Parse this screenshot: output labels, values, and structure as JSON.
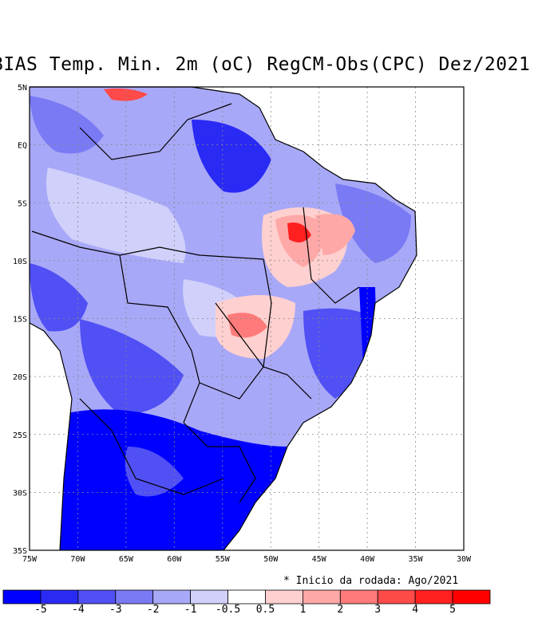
{
  "title": "BIAS Temp. Min. 2m (oC) RegCM-Obs(CPC) Dez/2021",
  "note": "* Inicio da rodada: Ago/2021",
  "axes": {
    "x_ticks": [
      "75W",
      "70W",
      "65W",
      "60W",
      "55W",
      "50W",
      "45W",
      "40W",
      "35W",
      "30W"
    ],
    "y_ticks": [
      "5N",
      "EQ",
      "5S",
      "10S",
      "15S",
      "20S",
      "25S",
      "30S",
      "35S"
    ],
    "lon_range": [
      -75,
      -30
    ],
    "lat_range": [
      -35,
      5
    ]
  },
  "colorbar": {
    "labels": [
      "-5",
      "-4",
      "-3",
      "-2",
      "-1",
      "-0.5",
      "0.5",
      "1",
      "2",
      "3",
      "4",
      "5"
    ],
    "colors": [
      "#0000ff",
      "#2a2af5",
      "#5050f5",
      "#7a7af5",
      "#a8a8f8",
      "#d0d0fb",
      "#ffffff",
      "#ffd0d0",
      "#ffa8a8",
      "#ff7a7a",
      "#ff4a4a",
      "#ff2020",
      "#ff0000"
    ]
  },
  "map_colors": {
    "deep_blue": "#0000ff",
    "mid_blue": "#5050f5",
    "light_blue": "#a8a8f8",
    "pale_blue": "#d0d0fb",
    "pale_red": "#ffd0d0",
    "mid_red": "#ff7a7a",
    "deep_red": "#ff2020"
  }
}
